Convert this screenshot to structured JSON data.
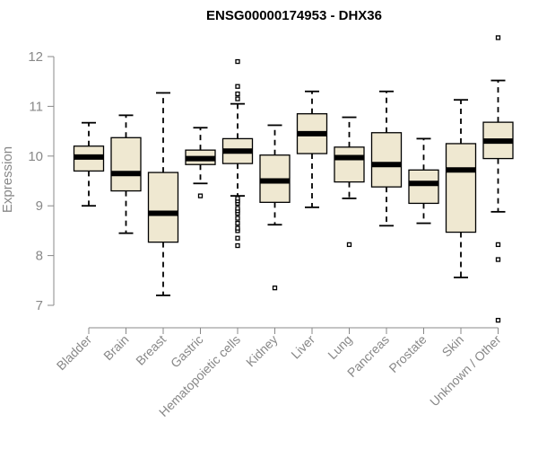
{
  "chart_data": {
    "type": "boxplot",
    "title": "ENSG00000174953 - DHX36",
    "ylabel": "Expression",
    "xlabel": "",
    "ylim": [
      6.5,
      12.5
    ],
    "yticks": [
      7,
      8,
      9,
      10,
      11,
      12
    ],
    "box_fill": "#efe8d1",
    "categories": [
      "Bladder",
      "Brain",
      "Breast",
      "Gastric",
      "Hematopoietic cells",
      "Kidney",
      "Liver",
      "Lung",
      "Pancreas",
      "Prostate",
      "Skin",
      "Unknown / Other"
    ],
    "boxes": [
      {
        "category": "Bladder",
        "whisker_low": 9.0,
        "q1": 9.7,
        "median": 9.98,
        "q3": 10.2,
        "whisker_high": 10.67,
        "outliers": []
      },
      {
        "category": "Brain",
        "whisker_low": 8.45,
        "q1": 9.3,
        "median": 9.65,
        "q3": 10.37,
        "whisker_high": 10.82,
        "outliers": []
      },
      {
        "category": "Breast",
        "whisker_low": 7.2,
        "q1": 8.27,
        "median": 8.85,
        "q3": 9.67,
        "whisker_high": 11.27,
        "outliers": []
      },
      {
        "category": "Gastric",
        "whisker_low": 9.45,
        "q1": 9.83,
        "median": 9.95,
        "q3": 10.12,
        "whisker_high": 10.57,
        "outliers": [
          9.2
        ]
      },
      {
        "category": "Hematopoietic cells",
        "whisker_low": 9.2,
        "q1": 9.85,
        "median": 10.1,
        "q3": 10.35,
        "whisker_high": 11.05,
        "outliers": [
          8.2,
          8.35,
          8.5,
          8.55,
          8.65,
          8.75,
          8.85,
          8.9,
          8.95,
          9.05,
          9.1,
          9.15,
          11.15,
          11.25,
          11.4,
          11.9
        ]
      },
      {
        "category": "Kidney",
        "whisker_low": 8.62,
        "q1": 9.07,
        "median": 9.5,
        "q3": 10.02,
        "whisker_high": 10.62,
        "outliers": [
          7.35
        ]
      },
      {
        "category": "Liver",
        "whisker_low": 8.97,
        "q1": 10.05,
        "median": 10.45,
        "q3": 10.85,
        "whisker_high": 11.3,
        "outliers": []
      },
      {
        "category": "Lung",
        "whisker_low": 9.15,
        "q1": 9.48,
        "median": 9.97,
        "q3": 10.18,
        "whisker_high": 10.78,
        "outliers": [
          8.22
        ]
      },
      {
        "category": "Pancreas",
        "whisker_low": 8.6,
        "q1": 9.38,
        "median": 9.83,
        "q3": 10.47,
        "whisker_high": 11.3,
        "outliers": []
      },
      {
        "category": "Prostate",
        "whisker_low": 8.65,
        "q1": 9.05,
        "median": 9.45,
        "q3": 9.72,
        "whisker_high": 10.35,
        "outliers": []
      },
      {
        "category": "Skin",
        "whisker_low": 7.56,
        "q1": 8.47,
        "median": 9.72,
        "q3": 10.25,
        "whisker_high": 11.13,
        "outliers": []
      },
      {
        "category": "Unknown / Other",
        "whisker_low": 8.88,
        "q1": 9.95,
        "median": 10.3,
        "q3": 10.68,
        "whisker_high": 11.52,
        "outliers": [
          6.7,
          7.92,
          8.22,
          12.38
        ]
      }
    ]
  }
}
